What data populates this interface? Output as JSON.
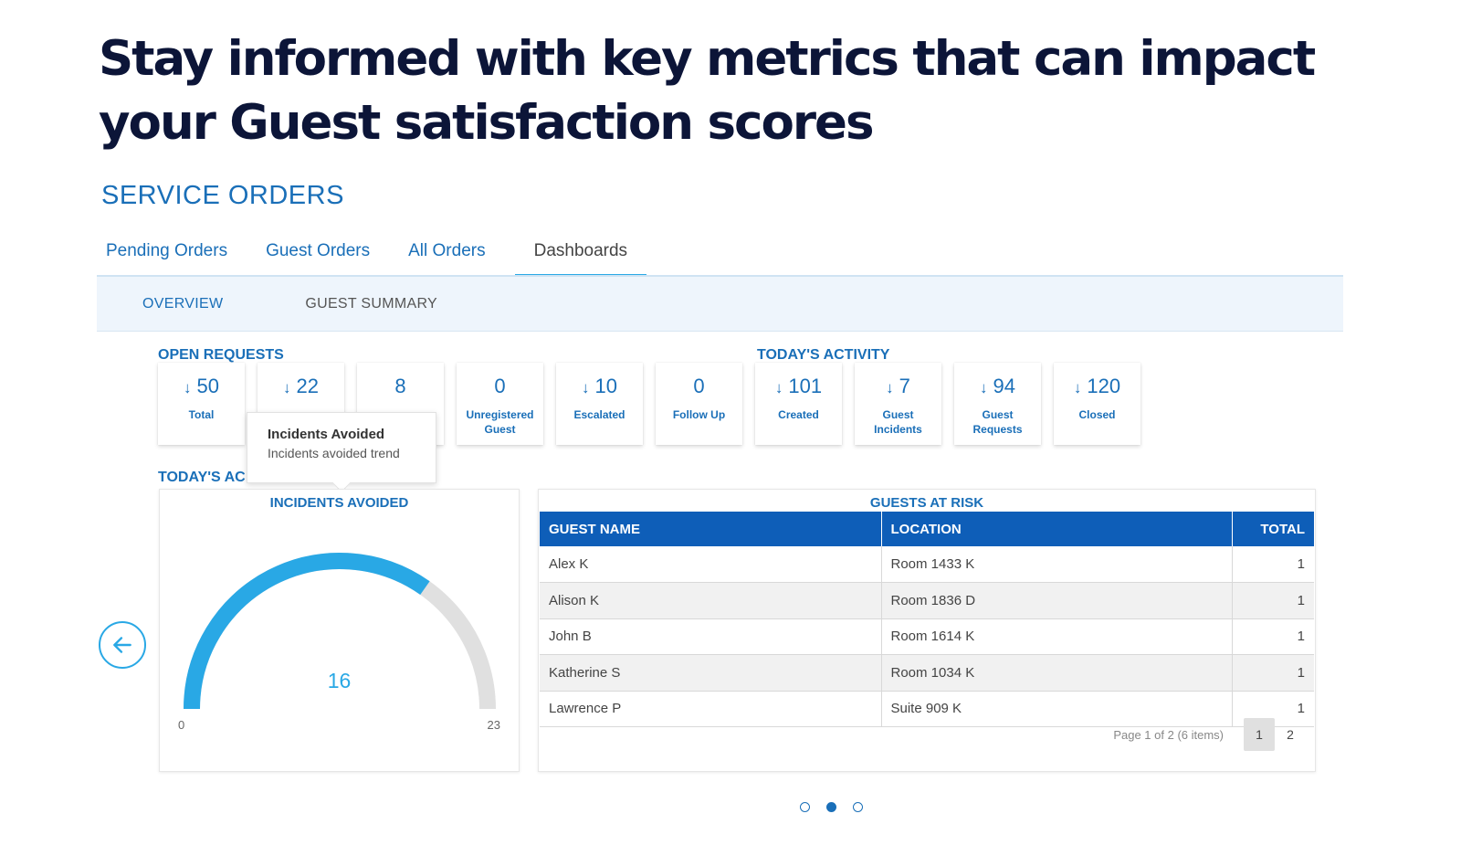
{
  "headline": "Stay informed with key metrics that can impact your Guest satisfaction scores",
  "section_title": "SERVICE ORDERS",
  "tabs": [
    {
      "label": "Pending Orders"
    },
    {
      "label": "Guest Orders"
    },
    {
      "label": "All Orders"
    },
    {
      "label": "Dashboards",
      "active": true
    }
  ],
  "subtabs": {
    "overview": "OVERVIEW",
    "summary": "GUEST SUMMARY"
  },
  "open_requests": {
    "label": "OPEN REQUESTS",
    "metrics": [
      {
        "value": "50",
        "label": "Total",
        "trend": "down"
      },
      {
        "value": "22",
        "label": "",
        "trend": "down"
      },
      {
        "value": "8",
        "label": "",
        "trend": ""
      },
      {
        "value": "0",
        "label": "Unregistered Guest",
        "trend": ""
      },
      {
        "value": "10",
        "label": "Escalated",
        "trend": "down"
      },
      {
        "value": "0",
        "label": "Follow Up",
        "trend": ""
      }
    ]
  },
  "todays_activity_top": {
    "label": "TODAY'S ACTIVITY",
    "metrics": [
      {
        "value": "101",
        "label": "Created",
        "trend": "down"
      },
      {
        "value": "7",
        "label": "Guest Incidents",
        "trend": "down"
      },
      {
        "value": "94",
        "label": "Guest Requests",
        "trend": "down"
      },
      {
        "value": "120",
        "label": "Closed",
        "trend": "down"
      }
    ]
  },
  "arrow_glyph": "↓",
  "tooltip": {
    "title": "Incidents Avoided",
    "subtitle": "Incidents avoided trend"
  },
  "todays_activity_label": "TODAY'S AC",
  "gauge": {
    "title": "INCIDENTS AVOIDED",
    "value": 16,
    "min": 0,
    "max": 23,
    "fill_color": "#29a8e5",
    "track_color": "#e0e0e0"
  },
  "guests_at_risk": {
    "title": "GUESTS AT RISK",
    "columns": [
      "GUEST NAME",
      "LOCATION",
      "TOTAL"
    ],
    "rows": [
      [
        "Alex K",
        "Room 1433 K",
        "1"
      ],
      [
        "Alison K",
        "Room 1836 D",
        "1"
      ],
      [
        "John B",
        "Room 1614 K",
        "1"
      ],
      [
        "Katherine S",
        "Room 1034 K",
        "1"
      ],
      [
        "Lawrence P",
        "Suite 909 K",
        "1"
      ]
    ],
    "pager": {
      "info": "Page 1 of 2 (6 items)",
      "pages": [
        "1",
        "2"
      ]
    }
  },
  "colors": {
    "accent": "#1a6fb8",
    "header_blue": "#0e5eb8",
    "gauge_blue": "#29a8e5",
    "headline": "#0c1538"
  },
  "carousel": {
    "count": 3,
    "active_index": 1
  }
}
